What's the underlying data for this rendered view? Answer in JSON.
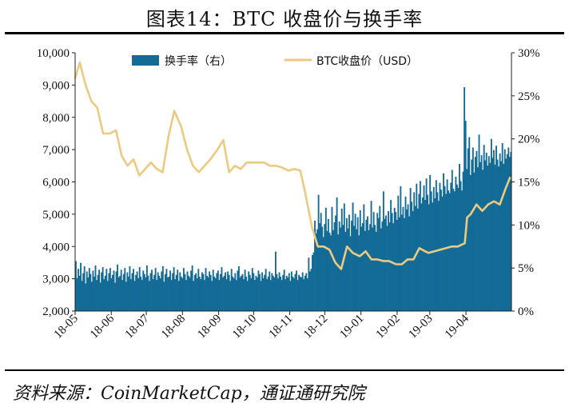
{
  "header": {
    "title": "图表14：BTC 收盘价与换手率"
  },
  "footer": {
    "source": "资料来源：CoinMarketCap，通证通研究院"
  },
  "chart_data": {
    "type": "bar+line",
    "title": "图表14：BTC 收盘价与换手率",
    "colors": {
      "bars": "#136b96",
      "line": "#ecca80"
    },
    "x_labels": [
      "18-05",
      "18-06",
      "18-07",
      "18-08",
      "18-09",
      "18-10",
      "18-11",
      "18-12",
      "19-01",
      "19-02",
      "19-03",
      "19-04"
    ],
    "left_axis": {
      "min": 2000,
      "max": 10000,
      "ticks": [
        "2,000",
        "3,000",
        "4,000",
        "5,000",
        "6,000",
        "7,000",
        "8,000",
        "9,000",
        "10,000"
      ]
    },
    "right_axis": {
      "min": 0,
      "max": 30,
      "ticks": [
        "0%",
        "5%",
        "10%",
        "15%",
        "20%",
        "25%",
        "30%"
      ]
    },
    "legend": {
      "position": "top",
      "bar_label": "换手率（右）",
      "line_label": "BTC收盘价（USD）"
    },
    "series": [
      {
        "name": "BTC收盘价（USD）",
        "axis": "left",
        "points": [
          [
            "18-05-01",
            9200
          ],
          [
            "18-05-05",
            9700
          ],
          [
            "18-05-10",
            9000
          ],
          [
            "18-05-15",
            8500
          ],
          [
            "18-05-20",
            8300
          ],
          [
            "18-05-25",
            7500
          ],
          [
            "18-05-31",
            7500
          ],
          [
            "18-06-05",
            7600
          ],
          [
            "18-06-10",
            6800
          ],
          [
            "18-06-15",
            6500
          ],
          [
            "18-06-20",
            6700
          ],
          [
            "18-06-25",
            6200
          ],
          [
            "18-06-30",
            6400
          ],
          [
            "18-07-05",
            6600
          ],
          [
            "18-07-10",
            6400
          ],
          [
            "18-07-15",
            6300
          ],
          [
            "18-07-20",
            7400
          ],
          [
            "18-07-25",
            8200
          ],
          [
            "18-07-31",
            7700
          ],
          [
            "18-08-05",
            7000
          ],
          [
            "18-08-10",
            6500
          ],
          [
            "18-08-15",
            6300
          ],
          [
            "18-08-20",
            6500
          ],
          [
            "18-08-25",
            6700
          ],
          [
            "18-08-31",
            7000
          ],
          [
            "18-09-05",
            7300
          ],
          [
            "18-09-10",
            6300
          ],
          [
            "18-09-15",
            6500
          ],
          [
            "18-09-20",
            6400
          ],
          [
            "18-09-25",
            6600
          ],
          [
            "18-09-30",
            6600
          ],
          [
            "18-10-05",
            6600
          ],
          [
            "18-10-10",
            6600
          ],
          [
            "18-10-15",
            6500
          ],
          [
            "18-10-20",
            6500
          ],
          [
            "18-10-25",
            6450
          ],
          [
            "18-10-31",
            6350
          ],
          [
            "18-11-05",
            6400
          ],
          [
            "18-11-10",
            6350
          ],
          [
            "18-11-14",
            5700
          ],
          [
            "18-11-20",
            4600
          ],
          [
            "18-11-25",
            4000
          ],
          [
            "18-11-30",
            4000
          ],
          [
            "18-12-05",
            3900
          ],
          [
            "18-12-10",
            3500
          ],
          [
            "18-12-15",
            3300
          ],
          [
            "18-12-20",
            4000
          ],
          [
            "18-12-25",
            3800
          ],
          [
            "18-12-31",
            3700
          ],
          [
            "19-01-05",
            3850
          ],
          [
            "19-01-10",
            3600
          ],
          [
            "19-01-15",
            3600
          ],
          [
            "19-01-20",
            3550
          ],
          [
            "19-01-25",
            3550
          ],
          [
            "19-01-31",
            3450
          ],
          [
            "19-02-05",
            3450
          ],
          [
            "19-02-10",
            3600
          ],
          [
            "19-02-15",
            3600
          ],
          [
            "19-02-20",
            3950
          ],
          [
            "19-02-25",
            3850
          ],
          [
            "19-02-28",
            3800
          ],
          [
            "19-03-05",
            3850
          ],
          [
            "19-03-10",
            3900
          ],
          [
            "19-03-15",
            3950
          ],
          [
            "19-03-20",
            4000
          ],
          [
            "19-03-25",
            4000
          ],
          [
            "19-03-31",
            4100
          ],
          [
            "19-04-02",
            4900
          ],
          [
            "19-04-05",
            5000
          ],
          [
            "19-04-10",
            5300
          ],
          [
            "19-04-15",
            5100
          ],
          [
            "19-04-20",
            5300
          ],
          [
            "19-04-25",
            5400
          ],
          [
            "19-04-30",
            5300
          ],
          [
            "19-05-05",
            5800
          ],
          [
            "19-05-09",
            6150
          ]
        ]
      },
      {
        "name": "换手率（右）",
        "axis": "right",
        "type": "bar",
        "daily_values": [
          5.8,
          3.8,
          4.9,
          4.1,
          5.6,
          3.5,
          4.4,
          5.2,
          3.2,
          4.6,
          3.9,
          5.0,
          4.3,
          3.4,
          4.7,
          4.0,
          5.3,
          3.6,
          4.2,
          4.8,
          3.3,
          4.5,
          5.1,
          3.7,
          4.1,
          4.9,
          3.5,
          4.4,
          5.0,
          3.8,
          4.2,
          4.7,
          3.3,
          4.6,
          5.4,
          3.9,
          4.1,
          4.8,
          3.6,
          4.3,
          5.0,
          3.4,
          4.5,
          4.0,
          5.2,
          3.7,
          4.4,
          4.9,
          3.5,
          4.2,
          4.6,
          3.8,
          5.1,
          4.0,
          3.6,
          4.7,
          4.3,
          3.9,
          5.3,
          4.1,
          3.5,
          4.4,
          4.8,
          3.7,
          4.2,
          5.0,
          3.6,
          4.5,
          4.1,
          3.8,
          4.6,
          5.2,
          3.4,
          4.3,
          4.9,
          3.9,
          4.0,
          4.7,
          3.6,
          4.4,
          5.1,
          3.7,
          4.2,
          4.8,
          3.5,
          4.5,
          4.0,
          3.8,
          5.0,
          4.3,
          3.6,
          4.6,
          4.1,
          3.9,
          4.7,
          5.3,
          3.5,
          4.2,
          4.4,
          3.8,
          4.9,
          4.0,
          3.7,
          4.5,
          4.3,
          3.6,
          5.0,
          4.1,
          3.9,
          4.6,
          4.2,
          3.5,
          4.8,
          4.0,
          3.8,
          4.4,
          4.7,
          3.6,
          4.3,
          5.1,
          3.9,
          4.1,
          4.5,
          3.7,
          4.6,
          4.2,
          3.5,
          4.9,
          4.0,
          3.8,
          4.4,
          3.6,
          4.7,
          5.2,
          3.9,
          4.1,
          4.3,
          3.7,
          4.8,
          4.0,
          3.5,
          4.6,
          4.2,
          3.8,
          5.0,
          4.4,
          3.6,
          4.1,
          3.9,
          4.7,
          4.3,
          3.5,
          4.5,
          3.8,
          4.2,
          4.9,
          3.7,
          4.0,
          4.6,
          3.6,
          4.4,
          4.1,
          3.9,
          6.9,
          4.3,
          3.8,
          4.5,
          4.0,
          3.6,
          4.2,
          4.8,
          3.7,
          4.1,
          3.9,
          4.4,
          3.5,
          4.6,
          4.0,
          3.8,
          4.3,
          4.7,
          3.6,
          4.2,
          4.0,
          3.9,
          4.5,
          3.7,
          4.1,
          4.4,
          3.8,
          6.2,
          4.6,
          4.9,
          6.5,
          6.8,
          10.5,
          9.0,
          9.5,
          13.5,
          10.2,
          11.4,
          9.8,
          8.6,
          10.1,
          12.0,
          9.3,
          10.7,
          9.1,
          8.8,
          12.1,
          9.4,
          10.3,
          11.1,
          13.2,
          8.9,
          10.4,
          9.7,
          11.9,
          10.0,
          12.5,
          9.2,
          10.8,
          9.6,
          11.2,
          8.7,
          10.5,
          12.6,
          9.9,
          11.3,
          9.5,
          10.9,
          8.8,
          11.7,
          9.8,
          10.2,
          12.4,
          9.3,
          10.6,
          11.0,
          9.4,
          10.1,
          12.8,
          9.7,
          11.5,
          10.0,
          9.2,
          11.4,
          10.8,
          12.2,
          9.6,
          10.4,
          13.9,
          10.7,
          11.1,
          9.9,
          11.6,
          10.3,
          12.9,
          11.4,
          10.2,
          12.0,
          11.5,
          10.6,
          13.4,
          10.9,
          14.5,
          11.2,
          12.1,
          10.8,
          13.3,
          11.8,
          12.4,
          11.0,
          14.3,
          12.7,
          11.6,
          13.8,
          12.2,
          14.8,
          11.9,
          13.6,
          15.1,
          12.5,
          13.2,
          14.6,
          12.9,
          15.4,
          13.5,
          12.4,
          15.8,
          13.9,
          12.6,
          14.4,
          13.1,
          15.2,
          13.8,
          12.8,
          14.9,
          14.1,
          13.3,
          16.0,
          14.5,
          13.6,
          15.3,
          14.0,
          13.7,
          14.9,
          16.4,
          14.2,
          13.9,
          15.6,
          14.7,
          14.3,
          17.1,
          15.1,
          14.0,
          16.2,
          26.0,
          22.1,
          16.5,
          18.9,
          20.2,
          15.8,
          17.6,
          19.0,
          16.1,
          17.9,
          18.6,
          16.7,
          20.5,
          17.3,
          18.1,
          16.4,
          19.3,
          17.5,
          18.4,
          16.9,
          18.0,
          17.2,
          20.0,
          17.8,
          18.7,
          17.0,
          19.2,
          17.6,
          16.8,
          18.3,
          17.4,
          19.5,
          17.1,
          18.8,
          17.7,
          18.2,
          19.0,
          17.9,
          18.5
        ]
      }
    ]
  }
}
